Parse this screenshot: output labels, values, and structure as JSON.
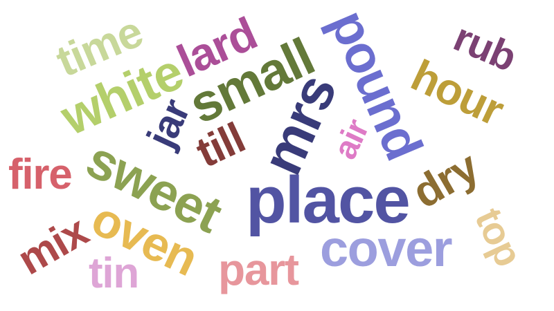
{
  "words": [
    {
      "text": "time",
      "color": "#c8d89a"
    },
    {
      "text": "white",
      "color": "#b4cf6b"
    },
    {
      "text": "lard",
      "color": "#ab4e98"
    },
    {
      "text": "small",
      "color": "#637939"
    },
    {
      "text": "pound",
      "color": "#6b6ecf"
    },
    {
      "text": "rub",
      "color": "#7b4173"
    },
    {
      "text": "hour",
      "color": "#bd9e39"
    },
    {
      "text": "jar",
      "color": "#393b79"
    },
    {
      "text": "mrs",
      "color": "#393b79"
    },
    {
      "text": "till",
      "color": "#843c39"
    },
    {
      "text": "air",
      "color": "#de7bc6"
    },
    {
      "text": "dry",
      "color": "#8c6d31"
    },
    {
      "text": "sweet",
      "color": "#8ca252"
    },
    {
      "text": "fire",
      "color": "#d6616b"
    },
    {
      "text": "place",
      "color": "#5254a3"
    },
    {
      "text": "oven",
      "color": "#e7ba52"
    },
    {
      "text": "top",
      "color": "#e7cb94"
    },
    {
      "text": "mix",
      "color": "#ad494a"
    },
    {
      "text": "cover",
      "color": "#9c9ede"
    },
    {
      "text": "part",
      "color": "#e7969c"
    },
    {
      "text": "tin",
      "color": "#dea5d6"
    }
  ]
}
